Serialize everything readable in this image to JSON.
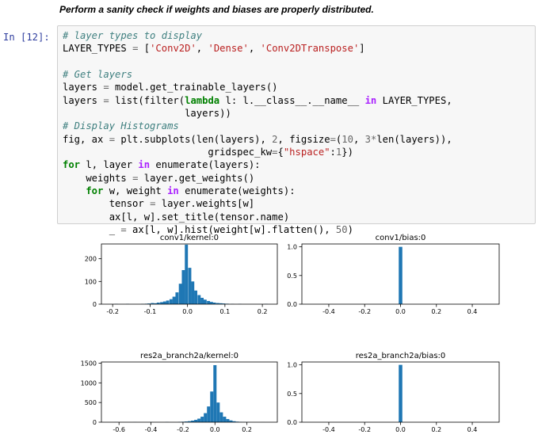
{
  "heading": "Perform a sanity check if weights and biases are properly distributed.",
  "prompt": "In [12]:",
  "code": {
    "l1_comment": "# layer types to display",
    "l2_a": "LAYER_TYPES ",
    "l2_eq": "=",
    "l2_b": " [",
    "l2_s1": "'Conv2D'",
    "l2_c1": ", ",
    "l2_s2": "'Dense'",
    "l2_c2": ", ",
    "l2_s3": "'Conv2DTranspose'",
    "l2_end": "]",
    "l4_comment": "# Get layers",
    "l5_a": "layers ",
    "l5_eq": "=",
    "l5_b": " model.get_trainable_layers()",
    "l6_a": "layers ",
    "l6_eq": "=",
    "l6_b": " list(filter(",
    "l6_kw": "lambda",
    "l6_c": " l: l.__class__.__name__ ",
    "l6_in": "in",
    "l6_d": " LAYER_TYPES,",
    "l7": "                     layers))",
    "l8_comment": "# Display Histograms",
    "l9_a": "fig, ax ",
    "l9_eq": "=",
    "l9_b": " plt.subplots(len(layers), ",
    "l9_n2": "2",
    "l9_c": ", figsize",
    "l9_eq2": "=",
    "l9_d": "(",
    "l9_n10": "10",
    "l9_e": ", ",
    "l9_n3": "3",
    "l9_star": "*",
    "l9_f": "len(layers)),",
    "l10_a": "                         gridspec_kw",
    "l10_eq": "=",
    "l10_b": "{",
    "l10_s": "\"hspace\"",
    "l10_c": ":",
    "l10_n": "1",
    "l10_d": "})",
    "l11_for": "for",
    "l11_a": " l, layer ",
    "l11_in": "in",
    "l11_b": " enumerate(layers):",
    "l12_a": "    weights ",
    "l12_eq": "=",
    "l12_b": " layer.get_weights()",
    "l13_for": "    for",
    "l13_a": " w, weight ",
    "l13_in": "in",
    "l13_b": " enumerate(weights):",
    "l14_a": "        tensor ",
    "l14_eq": "=",
    "l14_b": " layer.weights[w]",
    "l15": "        ax[l, w].set_title(tensor.name)",
    "l16_a": "        _ ",
    "l16_eq": "=",
    "l16_b": " ax[l, w].hist(weight[w].flatten(), ",
    "l16_n": "50",
    "l16_c": ")"
  },
  "bar_color": "#1f77b4",
  "chart_data": [
    {
      "type": "bar",
      "title": "conv1/kernel:0",
      "xlim": [
        -0.23,
        0.24
      ],
      "ylim": [
        0,
        265
      ],
      "xticks": [
        -0.2,
        -0.1,
        0.0,
        0.1,
        0.2
      ],
      "xtick_labels": [
        "-0.2",
        "-0.1",
        "0.0",
        "0.1",
        "0.2"
      ],
      "yticks": [
        0,
        100,
        200
      ],
      "ytick_labels": [
        "0",
        "100",
        "200"
      ],
      "bin_width": 0.0083,
      "bins": [
        [
          -0.19,
          1
        ],
        [
          -0.16,
          1
        ],
        [
          -0.12,
          1
        ],
        [
          -0.11,
          2
        ],
        [
          -0.103,
          3
        ],
        [
          -0.094,
          5
        ],
        [
          -0.086,
          4
        ],
        [
          -0.078,
          7
        ],
        [
          -0.069,
          9
        ],
        [
          -0.061,
          12
        ],
        [
          -0.053,
          16
        ],
        [
          -0.044,
          22
        ],
        [
          -0.036,
          33
        ],
        [
          -0.028,
          52
        ],
        [
          -0.019,
          90
        ],
        [
          -0.011,
          150
        ],
        [
          -0.003,
          262
        ],
        [
          0.006,
          160
        ],
        [
          0.014,
          100
        ],
        [
          0.022,
          60
        ],
        [
          0.031,
          40
        ],
        [
          0.039,
          28
        ],
        [
          0.047,
          20
        ],
        [
          0.056,
          14
        ],
        [
          0.064,
          10
        ],
        [
          0.072,
          7
        ],
        [
          0.081,
          5
        ],
        [
          0.089,
          4
        ],
        [
          0.097,
          3
        ],
        [
          0.106,
          2
        ],
        [
          0.12,
          1
        ],
        [
          0.14,
          1
        ],
        [
          0.21,
          1
        ]
      ]
    },
    {
      "type": "bar",
      "title": "conv1/bias:0",
      "xlim": [
        -0.55,
        0.55
      ],
      "ylim": [
        0,
        1.05
      ],
      "xticks": [
        -0.4,
        -0.2,
        0.0,
        0.2,
        0.4
      ],
      "xtick_labels": [
        "-0.4",
        "-0.2",
        "0.0",
        "0.2",
        "0.4"
      ],
      "yticks": [
        0,
        0.5,
        1.0
      ],
      "ytick_labels": [
        "0.0",
        "0.5",
        "1.0"
      ],
      "bin_width": 0.02,
      "bins": [
        [
          0.0,
          1.0
        ]
      ]
    },
    {
      "type": "bar",
      "title": "res2a_branch2a/kernel:0",
      "xlim": [
        -0.71,
        0.39
      ],
      "ylim": [
        0,
        1530
      ],
      "xticks": [
        -0.6,
        -0.4,
        -0.2,
        0.0,
        0.2
      ],
      "xtick_labels": [
        "-0.6",
        "-0.4",
        "-0.2",
        "0.0",
        "0.2"
      ],
      "yticks": [
        0,
        500,
        1000,
        1500
      ],
      "ytick_labels": [
        "0",
        "500",
        "1000",
        "1500"
      ],
      "bin_width": 0.0198,
      "bins": [
        [
          -0.62,
          2
        ],
        [
          -0.5,
          2
        ],
        [
          -0.4,
          3
        ],
        [
          -0.3,
          5
        ],
        [
          -0.22,
          8
        ],
        [
          -0.2,
          12
        ],
        [
          -0.18,
          18
        ],
        [
          -0.16,
          26
        ],
        [
          -0.14,
          40
        ],
        [
          -0.12,
          60
        ],
        [
          -0.1,
          90
        ],
        [
          -0.08,
          140
        ],
        [
          -0.06,
          230
        ],
        [
          -0.04,
          400
        ],
        [
          -0.02,
          780
        ],
        [
          0.0,
          1450
        ],
        [
          0.02,
          500
        ],
        [
          0.04,
          250
        ],
        [
          0.06,
          140
        ],
        [
          0.08,
          80
        ],
        [
          0.1,
          45
        ],
        [
          0.12,
          25
        ],
        [
          0.14,
          14
        ],
        [
          0.16,
          8
        ],
        [
          0.18,
          4
        ],
        [
          0.2,
          2
        ],
        [
          0.3,
          1
        ]
      ]
    },
    {
      "type": "bar",
      "title": "res2a_branch2a/bias:0",
      "xlim": [
        -0.55,
        0.55
      ],
      "ylim": [
        0,
        1.05
      ],
      "xticks": [
        -0.4,
        -0.2,
        0.0,
        0.2,
        0.4
      ],
      "xtick_labels": [
        "-0.4",
        "-0.2",
        "0.0",
        "0.2",
        "0.4"
      ],
      "yticks": [
        0,
        0.5,
        1.0
      ],
      "ytick_labels": [
        "0.0",
        "0.5",
        "1.0"
      ],
      "bin_width": 0.02,
      "bins": [
        [
          0.0,
          1.0
        ]
      ]
    }
  ]
}
